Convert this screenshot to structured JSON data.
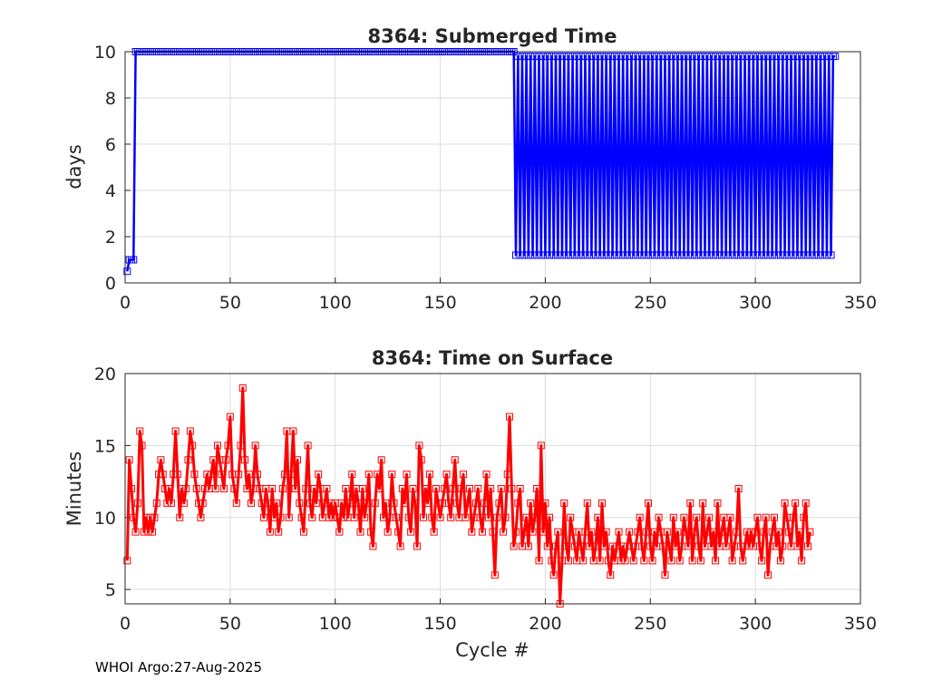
{
  "footer": "WHOI Argo:27-Aug-2025",
  "chart_data": [
    {
      "type": "line",
      "title": "8364: Submerged Time",
      "xlabel": "",
      "ylabel": "days",
      "xlim": [
        0,
        350
      ],
      "ylim": [
        0,
        10
      ],
      "xticks": [
        0,
        50,
        100,
        150,
        200,
        250,
        300,
        350
      ],
      "yticks": [
        0,
        2,
        4,
        6,
        8,
        10
      ],
      "grid": true,
      "marker": "square",
      "color": "#0000ff",
      "series": [
        {
          "segments": [
            {
              "x": [
                1,
                2,
                3,
                4
              ],
              "y": [
                0.5,
                1.0,
                1.0,
                1.0
              ]
            },
            {
              "x_start": 5,
              "x_end": 186,
              "value": 10.0
            },
            {
              "x_start": 186,
              "x_end": 337,
              "pattern": "alternating",
              "values": [
                1.2,
                9.8
              ]
            },
            {
              "x": [
                338
              ],
              "y": [
                9.8
              ]
            }
          ]
        }
      ]
    },
    {
      "type": "line",
      "title": "8364: Time on Surface",
      "xlabel": "Cycle #",
      "ylabel": "Minutes",
      "xlim": [
        0,
        350
      ],
      "ylim": [
        4,
        20
      ],
      "xticks": [
        0,
        50,
        100,
        150,
        200,
        250,
        300,
        350
      ],
      "yticks": [
        5,
        10,
        15,
        20
      ],
      "grid": true,
      "marker": "square",
      "color": "#ff0000",
      "series": [
        {
          "x_start": 1,
          "values": [
            7,
            14,
            12,
            10,
            9,
            11,
            16,
            15,
            9,
            10,
            9,
            10,
            9,
            10,
            11,
            13,
            14,
            13,
            12,
            11,
            12,
            11,
            13,
            16,
            13,
            10,
            12,
            11,
            12,
            14,
            16,
            15,
            13,
            12,
            11,
            10,
            11,
            12,
            13,
            12,
            13,
            14,
            12,
            15,
            14,
            13,
            12,
            14,
            15,
            17,
            13,
            12,
            11,
            13,
            15,
            19,
            14,
            12,
            13,
            11,
            12,
            15,
            13,
            12,
            11,
            10,
            12,
            11,
            9,
            12,
            10,
            11,
            9,
            10,
            12,
            13,
            16,
            10,
            13,
            16,
            12,
            14,
            11,
            10,
            9,
            12,
            15,
            11,
            10,
            12,
            11,
            13,
            12,
            10,
            11,
            12,
            10,
            11,
            10,
            11,
            10,
            9,
            11,
            10,
            12,
            10,
            11,
            13,
            10,
            12,
            11,
            9,
            12,
            10,
            11,
            13,
            9,
            8,
            11,
            13,
            12,
            14,
            10,
            11,
            9,
            10,
            13,
            11,
            10,
            9,
            8,
            12,
            11,
            13,
            10,
            9,
            12,
            11,
            8,
            15,
            14,
            10,
            12,
            11,
            13,
            10,
            9,
            12,
            11,
            10,
            11,
            12,
            13,
            11,
            10,
            12,
            14,
            11,
            10,
            12,
            13,
            10,
            11,
            12,
            9,
            10,
            11,
            12,
            10,
            9,
            11,
            13,
            10,
            12,
            9,
            6,
            10,
            11,
            12,
            9,
            10,
            13,
            17,
            12,
            8,
            9,
            11,
            12,
            8,
            9,
            10,
            8,
            11,
            9,
            10,
            12,
            7,
            15,
            9,
            11,
            8,
            10,
            7,
            6,
            8,
            9,
            4,
            7,
            11,
            8,
            7,
            10,
            9,
            8,
            7,
            9,
            8,
            7,
            9,
            11,
            8,
            9,
            7,
            8,
            10,
            7,
            11,
            8,
            9,
            7,
            6,
            8,
            7,
            8,
            9,
            7,
            8,
            7,
            8,
            9,
            8,
            7,
            8,
            9,
            10,
            8,
            7,
            9,
            11,
            8,
            7,
            9,
            8,
            10,
            9,
            8,
            6,
            9,
            8,
            7,
            10,
            8,
            9,
            7,
            8,
            10,
            9,
            8,
            11,
            7,
            9,
            10,
            8,
            7,
            11,
            8,
            9,
            10,
            8,
            9,
            7,
            11,
            8,
            9,
            10,
            8,
            9,
            10,
            7,
            8,
            9,
            12,
            8,
            7,
            8,
            9,
            8,
            9,
            8,
            9,
            10,
            8,
            7,
            9,
            10,
            6,
            8,
            9,
            10,
            8,
            9,
            7,
            8,
            11,
            10,
            9,
            8,
            10,
            11,
            8,
            9,
            7,
            10,
            11,
            8,
            9
          ],
          "note_markers": "every point"
        }
      ]
    }
  ]
}
